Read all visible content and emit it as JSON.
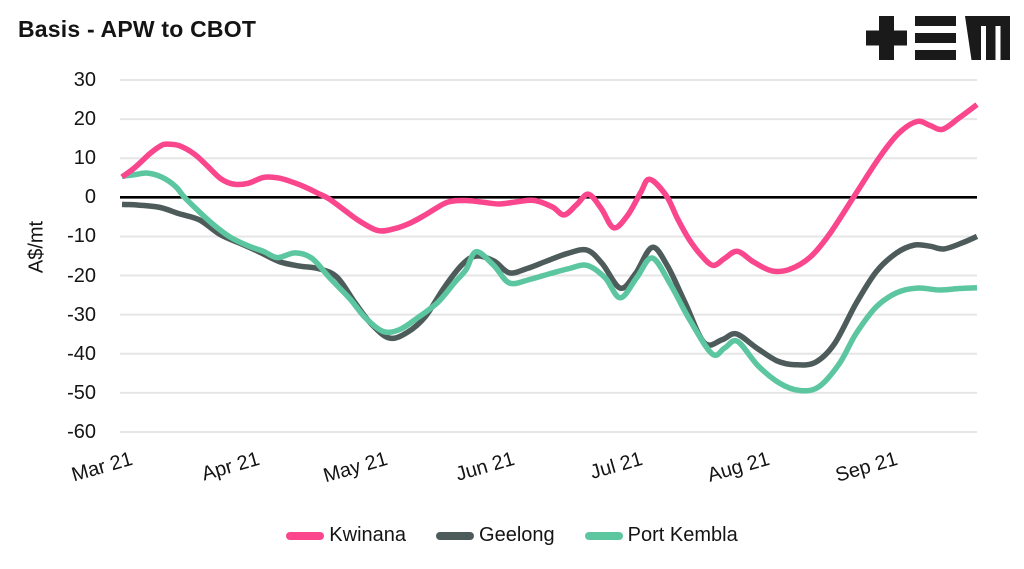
{
  "header": {
    "title": "Basis - APW to CBOT"
  },
  "logo": {
    "name": "TEM logo",
    "glyphs": [
      "plus",
      "triple-bar",
      "m"
    ],
    "color": "#1a1a1a"
  },
  "colors": {
    "background": "#ffffff",
    "text": "#141414",
    "grid": "#e6e6e6",
    "zero_line": "#000000",
    "kwinana": "#F9468D",
    "geelong": "#4D5C5A",
    "port_kembla": "#5CC6A0"
  },
  "chart_data": {
    "type": "line",
    "title": "Basis - APW to CBOT",
    "xlabel": "",
    "ylabel": "A$/mt",
    "ylim": [
      -60,
      30
    ],
    "yticks": [
      30,
      20,
      10,
      0,
      -10,
      -20,
      -30,
      -40,
      -50,
      -60
    ],
    "grid": "horizontal",
    "zero_line": true,
    "legend_position": "bottom",
    "x_unit": "months since 1 Mar 2021",
    "xlim": [
      0,
      6.71
    ],
    "xticks": [
      {
        "t": 0,
        "label": "Mar 21"
      },
      {
        "t": 1,
        "label": "Apr 21"
      },
      {
        "t": 2,
        "label": "May 21"
      },
      {
        "t": 3,
        "label": "Jun 21"
      },
      {
        "t": 4,
        "label": "Jul 21"
      },
      {
        "t": 5,
        "label": "Aug 21"
      },
      {
        "t": 6,
        "label": "Sep 21"
      }
    ],
    "z_order": [
      "Geelong",
      "Port Kembla",
      "Kwinana"
    ],
    "series": [
      {
        "name": "Kwinana",
        "color": "#F9468D",
        "points": [
          [
            0.0,
            5.2
          ],
          [
            0.1,
            7.6
          ],
          [
            0.22,
            11.2
          ],
          [
            0.3,
            13.1
          ],
          [
            0.35,
            13.6
          ],
          [
            0.45,
            13.2
          ],
          [
            0.57,
            11.0
          ],
          [
            0.67,
            8.0
          ],
          [
            0.77,
            4.9
          ],
          [
            0.87,
            3.4
          ],
          [
            0.99,
            3.6
          ],
          [
            1.11,
            5.1
          ],
          [
            1.22,
            5.0
          ],
          [
            1.32,
            4.1
          ],
          [
            1.44,
            2.6
          ],
          [
            1.54,
            1.0
          ],
          [
            1.63,
            -0.5
          ],
          [
            1.75,
            -3.4
          ],
          [
            1.87,
            -6.2
          ],
          [
            2.01,
            -8.5
          ],
          [
            2.14,
            -8.0
          ],
          [
            2.26,
            -6.6
          ],
          [
            2.38,
            -4.5
          ],
          [
            2.55,
            -1.3
          ],
          [
            2.69,
            -0.8
          ],
          [
            2.82,
            -1.2
          ],
          [
            2.96,
            -1.7
          ],
          [
            3.11,
            -1.1
          ],
          [
            3.24,
            -0.8
          ],
          [
            3.38,
            -2.5
          ],
          [
            3.47,
            -4.5
          ],
          [
            3.57,
            -1.8
          ],
          [
            3.66,
            0.8
          ],
          [
            3.76,
            -2.8
          ],
          [
            3.86,
            -7.8
          ],
          [
            3.97,
            -4.5
          ],
          [
            4.07,
            1.2
          ],
          [
            4.14,
            4.6
          ],
          [
            4.27,
            0.5
          ],
          [
            4.36,
            -5.5
          ],
          [
            4.45,
            -10.7
          ],
          [
            4.55,
            -15.0
          ],
          [
            4.64,
            -17.4
          ],
          [
            4.73,
            -15.6
          ],
          [
            4.83,
            -13.8
          ],
          [
            4.96,
            -16.6
          ],
          [
            5.1,
            -18.8
          ],
          [
            5.24,
            -18.4
          ],
          [
            5.4,
            -15.3
          ],
          [
            5.55,
            -9.5
          ],
          [
            5.75,
            0.5
          ],
          [
            5.95,
            10.5
          ],
          [
            6.1,
            16.5
          ],
          [
            6.24,
            19.4
          ],
          [
            6.34,
            18.4
          ],
          [
            6.44,
            17.4
          ],
          [
            6.57,
            20.3
          ],
          [
            6.71,
            23.7
          ]
        ]
      },
      {
        "name": "Geelong",
        "color": "#4D5C5A",
        "points": [
          [
            0.0,
            -1.8
          ],
          [
            0.14,
            -2.0
          ],
          [
            0.3,
            -2.6
          ],
          [
            0.45,
            -4.2
          ],
          [
            0.61,
            -5.8
          ],
          [
            0.77,
            -9.5
          ],
          [
            0.93,
            -11.8
          ],
          [
            1.08,
            -14.0
          ],
          [
            1.24,
            -16.5
          ],
          [
            1.4,
            -17.6
          ],
          [
            1.55,
            -18.3
          ],
          [
            1.69,
            -20.5
          ],
          [
            1.83,
            -27.0
          ],
          [
            1.96,
            -32.5
          ],
          [
            2.1,
            -36.0
          ],
          [
            2.24,
            -34.5
          ],
          [
            2.38,
            -30.5
          ],
          [
            2.53,
            -23.0
          ],
          [
            2.67,
            -17.2
          ],
          [
            2.78,
            -15.0
          ],
          [
            2.92,
            -16.3
          ],
          [
            3.04,
            -19.3
          ],
          [
            3.18,
            -18.2
          ],
          [
            3.34,
            -16.2
          ],
          [
            3.5,
            -14.3
          ],
          [
            3.65,
            -13.5
          ],
          [
            3.77,
            -17.0
          ],
          [
            3.91,
            -23.2
          ],
          [
            4.03,
            -19.5
          ],
          [
            4.16,
            -12.8
          ],
          [
            4.28,
            -17.5
          ],
          [
            4.42,
            -27.0
          ],
          [
            4.57,
            -37.2
          ],
          [
            4.71,
            -36.4
          ],
          [
            4.82,
            -34.9
          ],
          [
            4.98,
            -38.5
          ],
          [
            5.14,
            -41.8
          ],
          [
            5.28,
            -42.8
          ],
          [
            5.44,
            -42.2
          ],
          [
            5.59,
            -37.5
          ],
          [
            5.76,
            -27.2
          ],
          [
            5.92,
            -19.0
          ],
          [
            6.08,
            -14.2
          ],
          [
            6.22,
            -12.2
          ],
          [
            6.34,
            -12.5
          ],
          [
            6.45,
            -13.2
          ],
          [
            6.59,
            -11.7
          ],
          [
            6.71,
            -10.0
          ]
        ]
      },
      {
        "name": "Port Kembla",
        "color": "#5CC6A0",
        "points": [
          [
            0.0,
            5.4
          ],
          [
            0.1,
            5.8
          ],
          [
            0.2,
            6.2
          ],
          [
            0.31,
            5.2
          ],
          [
            0.42,
            2.8
          ],
          [
            0.49,
            0.0
          ],
          [
            0.61,
            -3.8
          ],
          [
            0.73,
            -7.3
          ],
          [
            0.85,
            -10.2
          ],
          [
            0.99,
            -12.4
          ],
          [
            1.11,
            -13.8
          ],
          [
            1.22,
            -15.4
          ],
          [
            1.36,
            -14.2
          ],
          [
            1.49,
            -15.6
          ],
          [
            1.63,
            -20.6
          ],
          [
            1.79,
            -26.0
          ],
          [
            1.91,
            -30.8
          ],
          [
            2.05,
            -34.3
          ],
          [
            2.18,
            -33.8
          ],
          [
            2.32,
            -30.8
          ],
          [
            2.48,
            -26.8
          ],
          [
            2.61,
            -21.8
          ],
          [
            2.7,
            -18.5
          ],
          [
            2.78,
            -13.9
          ],
          [
            2.92,
            -17.5
          ],
          [
            3.04,
            -21.9
          ],
          [
            3.2,
            -21.0
          ],
          [
            3.36,
            -19.5
          ],
          [
            3.51,
            -18.2
          ],
          [
            3.65,
            -17.4
          ],
          [
            3.79,
            -20.5
          ],
          [
            3.91,
            -25.7
          ],
          [
            4.04,
            -20.5
          ],
          [
            4.16,
            -15.5
          ],
          [
            4.3,
            -22.0
          ],
          [
            4.45,
            -31.0
          ],
          [
            4.63,
            -40.0
          ],
          [
            4.73,
            -38.5
          ],
          [
            4.83,
            -36.8
          ],
          [
            4.99,
            -43.0
          ],
          [
            5.16,
            -47.5
          ],
          [
            5.32,
            -49.4
          ],
          [
            5.47,
            -48.4
          ],
          [
            5.63,
            -42.5
          ],
          [
            5.76,
            -34.9
          ],
          [
            5.92,
            -28.0
          ],
          [
            6.08,
            -24.4
          ],
          [
            6.24,
            -23.2
          ],
          [
            6.42,
            -23.7
          ],
          [
            6.57,
            -23.3
          ],
          [
            6.71,
            -23.1
          ]
        ]
      }
    ]
  }
}
